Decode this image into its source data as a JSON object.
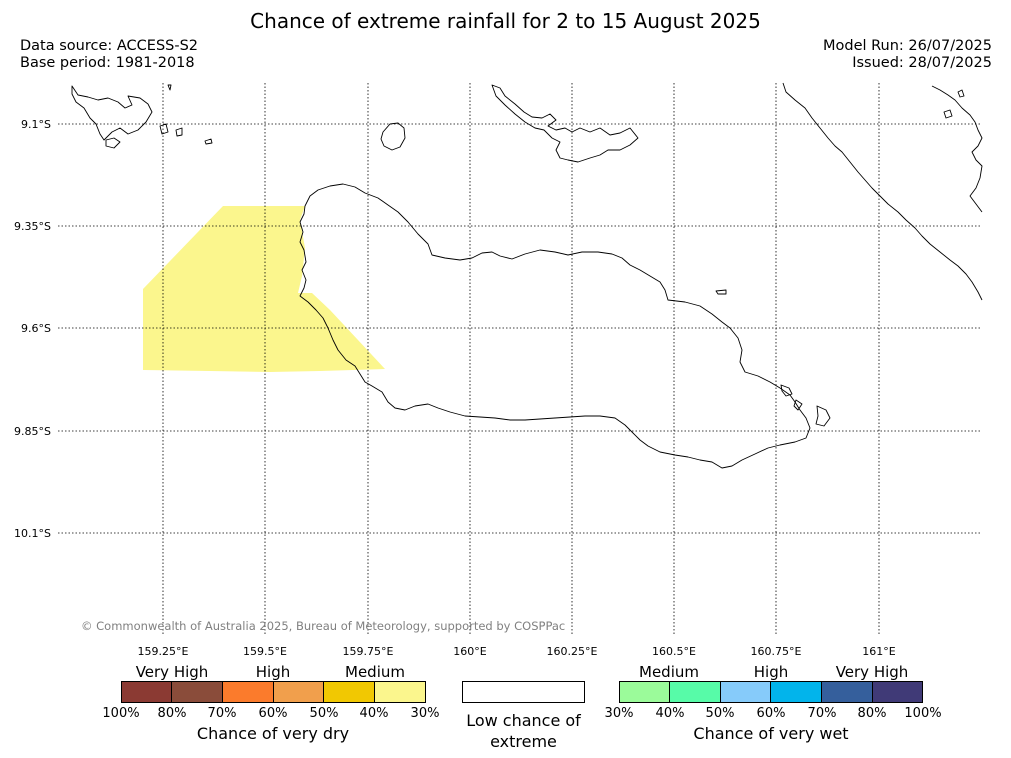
{
  "title": "Chance of extreme rainfall for 2 to 15 August 2025",
  "meta": {
    "data_source": "Data source: ACCESS-S2",
    "base_period": "Base period: 1981-2018",
    "model_run": "Model Run: 26/07/2025",
    "issued": "Issued: 28/07/2025"
  },
  "map": {
    "lon_labels": [
      "159.25°E",
      "159.5°E",
      "159.75°E",
      "160°E",
      "160.25°E",
      "160.5°E",
      "160.75°E",
      "161°E"
    ],
    "lat_labels": [
      "9.1°S",
      "9.35°S",
      "9.6°S",
      "9.85°S",
      "10.1°S"
    ],
    "highlight_category": "Medium (30-40% chance of very dry)",
    "highlight_color": "#fbf68d",
    "coastline_color": "#000000",
    "grid_style": "dotted"
  },
  "copyright": "© Commonwealth of Australia 2025, Bureau of Meteorology, supported by COSPPac",
  "legend": {
    "dry": {
      "levels": [
        "Very High",
        "High",
        "Medium"
      ],
      "colors": [
        "#8b3a33",
        "#8a4c3a",
        "#fb7b2c",
        "#f19f4c",
        "#f1c802",
        "#fbf68d"
      ],
      "ticks": [
        "100%",
        "80%",
        "70%",
        "60%",
        "50%",
        "40%",
        "30%"
      ],
      "caption": "Chance of very dry"
    },
    "neutral": {
      "color": "#ffffff",
      "caption": "Low chance of extreme"
    },
    "wet": {
      "levels": [
        "Medium",
        "High",
        "Very High"
      ],
      "colors": [
        "#9bfb9a",
        "#57fba8",
        "#86cbfa",
        "#02b4eb",
        "#355f9c",
        "#403a77"
      ],
      "ticks": [
        "30%",
        "40%",
        "50%",
        "60%",
        "70%",
        "80%",
        "100%"
      ],
      "caption": "Chance of very wet"
    }
  }
}
